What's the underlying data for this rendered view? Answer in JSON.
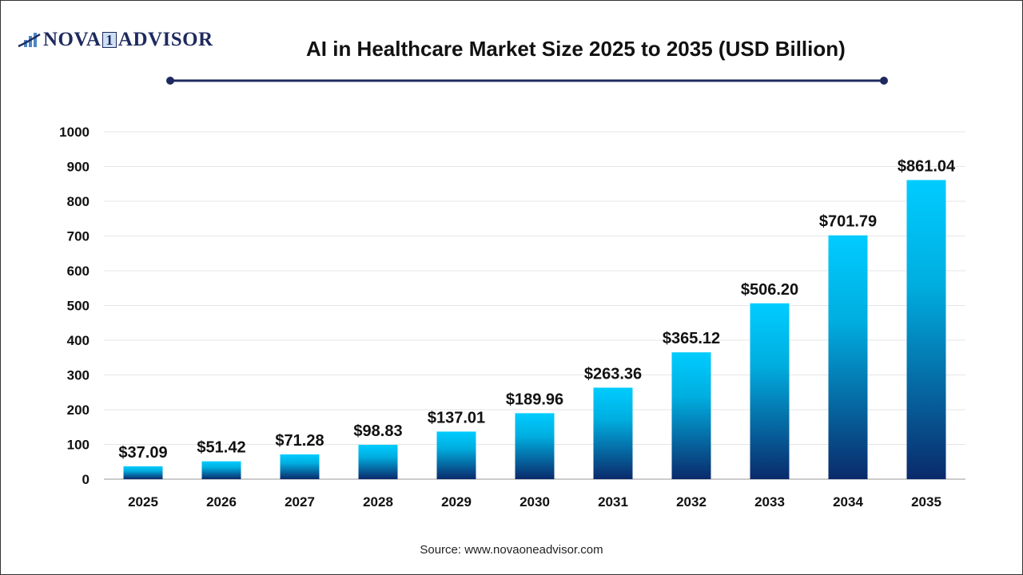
{
  "logo": {
    "text_left": "NOVA",
    "text_mid": "1",
    "text_right": "ADVISOR"
  },
  "title": "AI in Healthcare Market Size 2025 to 2035 (USD Billion)",
  "source": "Source: www.novaoneadvisor.com",
  "colors": {
    "bar_top": "#00ccff",
    "bar_bottom": "#0a2a6b",
    "title_rule": "#1e2a5e"
  },
  "chart_data": {
    "type": "bar",
    "title": "AI in Healthcare Market Size 2025 to 2035 (USD Billion)",
    "categories": [
      "2025",
      "2026",
      "2027",
      "2028",
      "2029",
      "2030",
      "2031",
      "2032",
      "2033",
      "2034",
      "2035"
    ],
    "values": [
      37.09,
      51.42,
      71.28,
      98.83,
      137.01,
      189.96,
      263.36,
      365.12,
      506.2,
      701.79,
      861.04
    ],
    "data_labels": [
      "$37.09",
      "$51.42",
      "$71.28",
      "$98.83",
      "$137.01",
      "$189.96",
      "$263.36",
      "$365.12",
      "$506.20",
      "$701.79",
      "$861.04"
    ],
    "yticks": [
      0,
      100,
      200,
      300,
      400,
      500,
      600,
      700,
      800,
      900,
      1000
    ],
    "ylim": [
      0,
      1000
    ],
    "xlabel": "",
    "ylabel": "",
    "grid": true
  }
}
